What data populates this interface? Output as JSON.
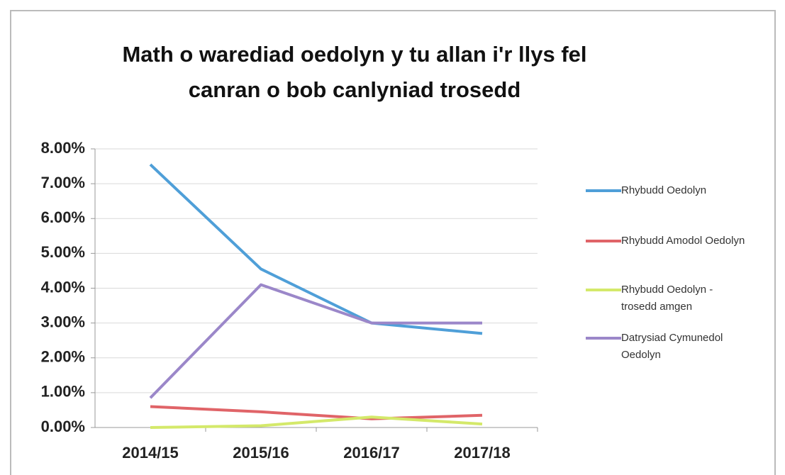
{
  "chart_data": {
    "type": "line",
    "title": "Math o warediad oedolyn y tu allan i'r llys fel canran o bob canlyniad trosedd",
    "categories": [
      "2014/15",
      "2015/16",
      "2016/17",
      "2017/18"
    ],
    "series": [
      {
        "name": "Rhybudd Oedolyn",
        "color": "#4f9fd8",
        "values": [
          7.55,
          4.55,
          3.0,
          2.7
        ]
      },
      {
        "name": "Rhybudd Amodol Oedolyn",
        "color": "#e06468",
        "values": [
          0.6,
          0.45,
          0.25,
          0.35
        ]
      },
      {
        "name": "Rhybudd Oedolyn - trosedd amgen",
        "color": "#d4e96a",
        "values": [
          0.0,
          0.05,
          0.3,
          0.1
        ]
      },
      {
        "name": "Datrysiad Cymunedol Oedolyn",
        "color": "#9b87c9",
        "values": [
          0.85,
          4.1,
          3.0,
          3.0
        ]
      }
    ],
    "ylim": [
      0,
      8
    ],
    "yticks": [
      {
        "value": 0,
        "label": "0.00%"
      },
      {
        "value": 1,
        "label": "1.00%"
      },
      {
        "value": 2,
        "label": "2.00%"
      },
      {
        "value": 3,
        "label": "3.00%"
      },
      {
        "value": 4,
        "label": "4.00%"
      },
      {
        "value": 5,
        "label": "5.00%"
      },
      {
        "value": 6,
        "label": "6.00%"
      },
      {
        "value": 7,
        "label": "7.00%"
      },
      {
        "value": 8,
        "label": "8.00%"
      }
    ],
    "grid": true
  }
}
